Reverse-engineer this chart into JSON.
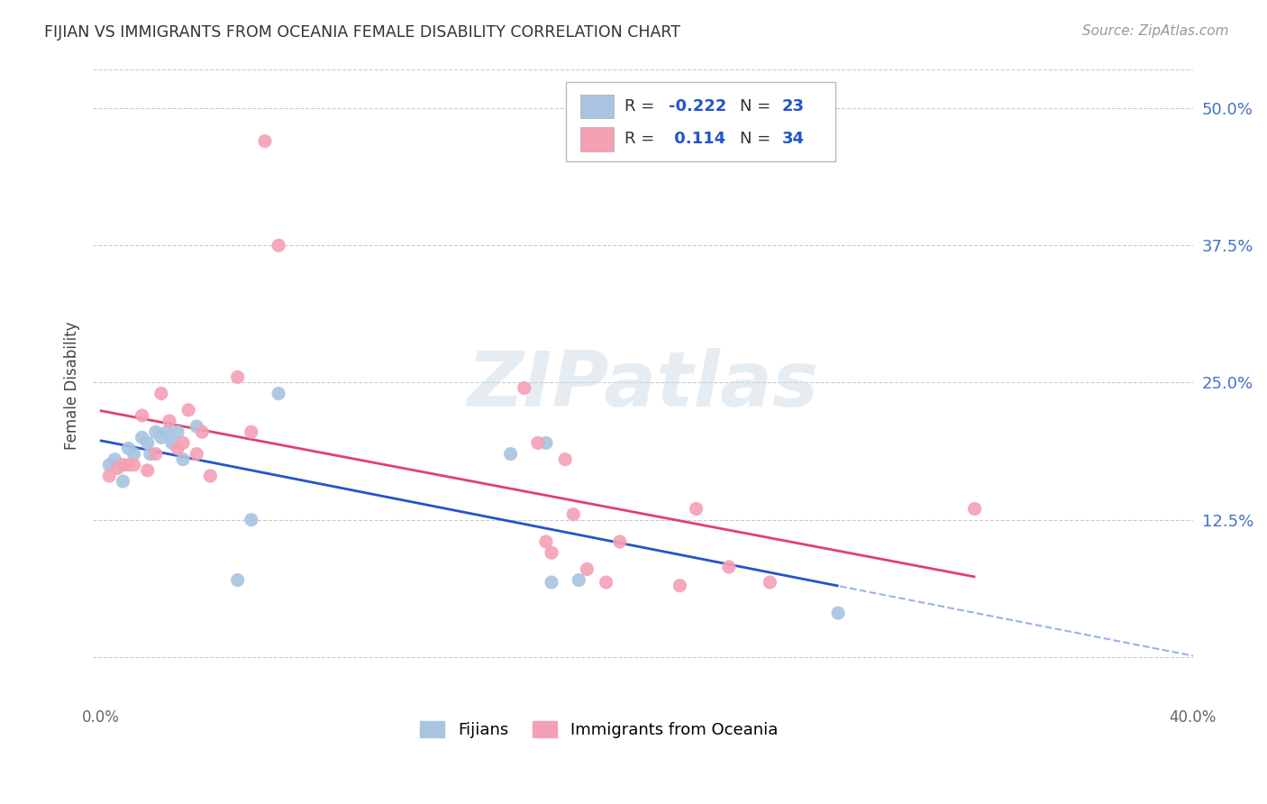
{
  "title": "FIJIAN VS IMMIGRANTS FROM OCEANIA FEMALE DISABILITY CORRELATION CHART",
  "source": "Source: ZipAtlas.com",
  "ylabel": "Female Disability",
  "xlim": [
    -0.003,
    0.4
  ],
  "ylim": [
    -0.04,
    0.535
  ],
  "fijians_color": "#a8c4e0",
  "oceania_color": "#f4a0b5",
  "fijians_line_color": "#2255cc",
  "oceania_line_color": "#e04070",
  "r_fijians": -0.222,
  "n_fijians": 23,
  "r_oceania": 0.114,
  "n_oceania": 34,
  "legend_fijians": "Fijians",
  "legend_oceania": "Immigrants from Oceania",
  "watermark_text": "ZIPatlas",
  "fijians_x": [
    0.003,
    0.005,
    0.008,
    0.01,
    0.012,
    0.015,
    0.017,
    0.018,
    0.02,
    0.022,
    0.024,
    0.026,
    0.028,
    0.03,
    0.035,
    0.05,
    0.055,
    0.065,
    0.15,
    0.163,
    0.165,
    0.175,
    0.27
  ],
  "fijians_y": [
    0.175,
    0.18,
    0.16,
    0.19,
    0.185,
    0.2,
    0.195,
    0.185,
    0.205,
    0.2,
    0.205,
    0.195,
    0.205,
    0.18,
    0.21,
    0.07,
    0.125,
    0.24,
    0.185,
    0.195,
    0.068,
    0.07,
    0.04
  ],
  "oceania_x": [
    0.003,
    0.006,
    0.008,
    0.01,
    0.012,
    0.015,
    0.017,
    0.02,
    0.022,
    0.025,
    0.028,
    0.03,
    0.032,
    0.035,
    0.037,
    0.04,
    0.05,
    0.055,
    0.06,
    0.065,
    0.155,
    0.16,
    0.163,
    0.165,
    0.17,
    0.173,
    0.178,
    0.185,
    0.19,
    0.212,
    0.218,
    0.23,
    0.245,
    0.32
  ],
  "oceania_y": [
    0.165,
    0.172,
    0.175,
    0.175,
    0.175,
    0.22,
    0.17,
    0.185,
    0.24,
    0.215,
    0.19,
    0.195,
    0.225,
    0.185,
    0.205,
    0.165,
    0.255,
    0.205,
    0.47,
    0.375,
    0.245,
    0.195,
    0.105,
    0.095,
    0.18,
    0.13,
    0.08,
    0.068,
    0.105,
    0.065,
    0.135,
    0.082,
    0.068,
    0.135
  ],
  "yticks": [
    0.0,
    0.125,
    0.25,
    0.375,
    0.5
  ],
  "ytick_labels": [
    "",
    "12.5%",
    "25.0%",
    "37.5%",
    "50.0%"
  ],
  "xticks": [
    0.0,
    0.1,
    0.2,
    0.3,
    0.4
  ],
  "xtick_labels": [
    "0.0%",
    "",
    "",
    "",
    "40.0%"
  ],
  "background_color": "#ffffff",
  "grid_color": "#cccccc",
  "tick_color": "#4472c4"
}
